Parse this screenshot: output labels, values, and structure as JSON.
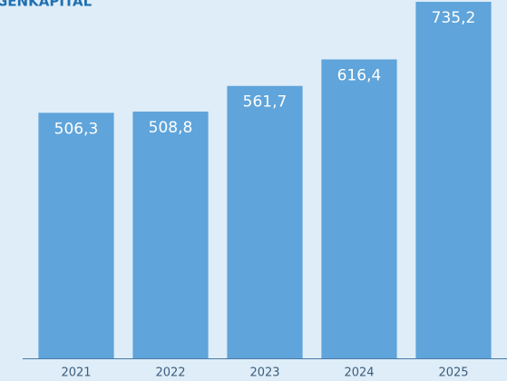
{
  "chart_data": {
    "type": "bar",
    "title": "GENKAPITAL",
    "categories": [
      "2021",
      "2022",
      "2023",
      "2024",
      "2025"
    ],
    "values": [
      506.3,
      508.8,
      561.7,
      616.4,
      735.2
    ],
    "value_labels": [
      "506,3",
      "508,8",
      "561,7",
      "616,4",
      "735,2"
    ],
    "color": "#5fa4da"
  }
}
